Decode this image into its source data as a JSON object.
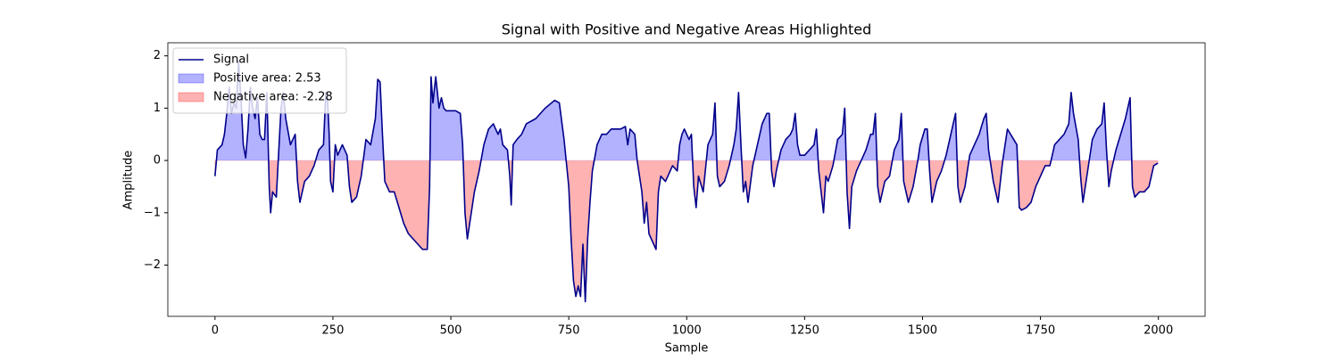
{
  "chart_data": {
    "type": "line",
    "title": "Signal with Positive and Negative Areas Highlighted",
    "x_label": "Sample",
    "y_label": "Amplitude",
    "xlim": [
      -100,
      2099
    ],
    "ylim": [
      -2.98,
      2.25
    ],
    "xticks": [
      0,
      250,
      500,
      750,
      1000,
      1250,
      1500,
      1750,
      2000
    ],
    "yticks": [
      {
        "value": -2,
        "label": "−2"
      },
      {
        "value": -1,
        "label": "−1"
      },
      0,
      1,
      2
    ],
    "legend": "upper left",
    "x": [
      0,
      5,
      15,
      20,
      25,
      30,
      35,
      40,
      45,
      50,
      55,
      60,
      65,
      70,
      75,
      80,
      85,
      90,
      95,
      100,
      105,
      110,
      115,
      118,
      122,
      130,
      140,
      145,
      150,
      160,
      165,
      170,
      175,
      180,
      185,
      190,
      200,
      210,
      220,
      230,
      235,
      238,
      242,
      245,
      250,
      255,
      260,
      270,
      280,
      285,
      290,
      300,
      310,
      320,
      330,
      340,
      345,
      350,
      355,
      360,
      370,
      380,
      390,
      400,
      410,
      420,
      430,
      440,
      450,
      455,
      458,
      462,
      468,
      475,
      480,
      485,
      490,
      500,
      510,
      520,
      525,
      530,
      535,
      540,
      550,
      560,
      570,
      580,
      590,
      600,
      605,
      610,
      620,
      625,
      628,
      632,
      640,
      650,
      660,
      680,
      700,
      720,
      730,
      740,
      750,
      755,
      760,
      765,
      770,
      775,
      780,
      785,
      790,
      795,
      800,
      810,
      820,
      830,
      840,
      850,
      860,
      870,
      875,
      880,
      890,
      895,
      900,
      905,
      910,
      915,
      920,
      930,
      935,
      940,
      945,
      955,
      960,
      970,
      980,
      985,
      990,
      995,
      1005,
      1010,
      1015,
      1020,
      1025,
      1035,
      1045,
      1055,
      1060,
      1065,
      1070,
      1080,
      1090,
      1100,
      1105,
      1110,
      1115,
      1120,
      1125,
      1130,
      1140,
      1150,
      1160,
      1170,
      1175,
      1180,
      1185,
      1190,
      1200,
      1210,
      1220,
      1225,
      1230,
      1235,
      1240,
      1250,
      1260,
      1270,
      1275,
      1280,
      1290,
      1295,
      1300,
      1310,
      1320,
      1330,
      1335,
      1340,
      1345,
      1350,
      1360,
      1370,
      1380,
      1390,
      1395,
      1400,
      1405,
      1410,
      1420,
      1430,
      1440,
      1450,
      1455,
      1460,
      1470,
      1480,
      1490,
      1495,
      1505,
      1510,
      1515,
      1520,
      1530,
      1540,
      1550,
      1560,
      1565,
      1570,
      1575,
      1580,
      1590,
      1600,
      1610,
      1620,
      1630,
      1635,
      1640,
      1650,
      1660,
      1670,
      1680,
      1690,
      1700,
      1705,
      1710,
      1720,
      1730,
      1740,
      1750,
      1760,
      1770,
      1780,
      1790,
      1800,
      1810,
      1815,
      1820,
      1830,
      1835,
      1840,
      1850,
      1860,
      1870,
      1880,
      1885,
      1890,
      1895,
      1900,
      1910,
      1920,
      1930,
      1940,
      1945,
      1950,
      1960,
      1970,
      1980,
      1990,
      1999
    ],
    "series": [
      {
        "name": "Signal",
        "color": "#00008b",
        "values": [
          -0.3,
          0.2,
          0.3,
          0.5,
          0.9,
          1.4,
          0.9,
          1.1,
          1.0,
          1.9,
          1.2,
          0.3,
          0.05,
          0.6,
          1.4,
          1.0,
          0.8,
          1.2,
          0.5,
          0.4,
          0.4,
          1.3,
          -0.5,
          -1.0,
          -0.6,
          -0.7,
          1.0,
          1.3,
          0.8,
          0.3,
          0.4,
          0.5,
          -0.4,
          -0.8,
          -0.6,
          -0.4,
          -0.3,
          -0.1,
          0.2,
          0.3,
          1.3,
          1.3,
          0.5,
          -0.4,
          -0.6,
          0.3,
          0.1,
          0.3,
          0.1,
          -0.5,
          -0.8,
          -0.7,
          -0.3,
          0.4,
          0.3,
          0.8,
          1.55,
          1.5,
          0.5,
          -0.4,
          -0.6,
          -0.6,
          -0.9,
          -1.2,
          -1.4,
          -1.5,
          -1.6,
          -1.7,
          -1.7,
          -0.5,
          1.6,
          1.1,
          1.6,
          1.0,
          1.2,
          1.0,
          0.95,
          0.95,
          0.95,
          0.9,
          0.3,
          -1.0,
          -1.5,
          -1.2,
          -0.6,
          -0.2,
          0.3,
          0.6,
          0.7,
          0.5,
          0.6,
          0.3,
          0.2,
          -0.3,
          -0.85,
          0.3,
          0.4,
          0.5,
          0.7,
          0.8,
          1.0,
          1.15,
          1.1,
          0.4,
          -0.5,
          -1.5,
          -2.3,
          -2.6,
          -2.4,
          -2.6,
          -1.6,
          -2.7,
          -1.5,
          -0.8,
          -0.2,
          0.3,
          0.5,
          0.5,
          0.6,
          0.6,
          0.6,
          0.65,
          0.3,
          0.6,
          0.5,
          0.0,
          -0.3,
          -0.6,
          -1.2,
          -0.8,
          -1.4,
          -1.6,
          -1.7,
          -0.6,
          -0.3,
          -0.4,
          -0.3,
          -0.1,
          -0.2,
          0.3,
          0.5,
          0.6,
          0.4,
          0.5,
          -0.5,
          -0.9,
          -0.3,
          -0.6,
          0.3,
          0.5,
          1.1,
          -0.3,
          -0.5,
          -0.4,
          -0.1,
          0.3,
          0.6,
          1.3,
          0.3,
          -0.6,
          -0.4,
          -0.8,
          -0.1,
          0.3,
          0.7,
          0.9,
          0.9,
          -0.2,
          -0.5,
          -0.2,
          0.2,
          0.4,
          0.5,
          0.6,
          0.9,
          0.3,
          0.1,
          0.1,
          0.2,
          0.3,
          0.6,
          -0.2,
          -1.0,
          -0.3,
          -0.4,
          -0.1,
          0.4,
          0.5,
          1.0,
          -0.6,
          -1.3,
          -0.5,
          -0.2,
          0.0,
          0.2,
          0.5,
          0.5,
          0.9,
          -0.5,
          -0.8,
          -0.4,
          -0.3,
          0.2,
          0.4,
          0.9,
          -0.4,
          -0.8,
          -0.5,
          0.0,
          0.3,
          0.6,
          0.6,
          -0.2,
          -0.8,
          -0.4,
          -0.2,
          0.1,
          0.5,
          0.7,
          0.9,
          -0.5,
          -0.8,
          -0.5,
          0.1,
          0.3,
          0.5,
          0.8,
          0.9,
          0.2,
          -0.4,
          -0.8,
          0.0,
          0.6,
          0.45,
          0.3,
          -0.9,
          -0.95,
          -0.9,
          -0.8,
          -0.5,
          -0.3,
          -0.1,
          -0.1,
          0.3,
          0.4,
          0.5,
          0.7,
          1.3,
          0.9,
          0.4,
          -0.3,
          -0.8,
          -0.2,
          0.4,
          0.6,
          0.7,
          1.1,
          0.2,
          -0.5,
          -0.2,
          0.2,
          0.5,
          0.8,
          1.2,
          -0.5,
          -0.7,
          -0.6,
          -0.6,
          -0.5,
          -0.1,
          -0.05
        ]
      }
    ],
    "fills": [
      {
        "name": "Positive area: 2.53",
        "color": "#0000ff",
        "alpha": 0.3,
        "region": "above"
      },
      {
        "name": "Negative area: -2.28",
        "color": "#ff0000",
        "alpha": 0.3,
        "region": "below"
      }
    ]
  }
}
